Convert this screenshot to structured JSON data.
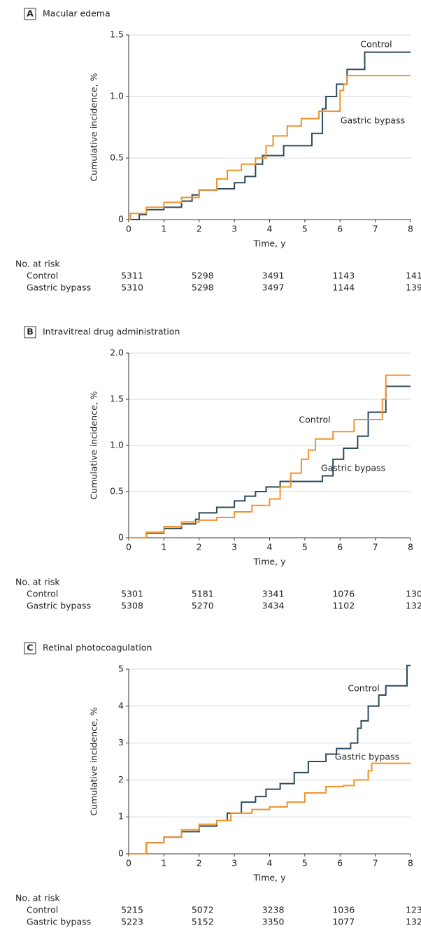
{
  "chart_data": [
    {
      "type": "line",
      "step": true,
      "panel": "A",
      "title": "Macular edema",
      "xlabel": "Time, y",
      "ylabel": "Cumulative incidence, %",
      "xlim": [
        0,
        8
      ],
      "xticks": [
        0,
        1,
        2,
        3,
        4,
        5,
        6,
        7,
        8
      ],
      "ylim": [
        0,
        1.5
      ],
      "yticks": [
        0,
        0.5,
        {
          "value": 1,
          "label": "1.0"
        },
        1.5
      ],
      "grid": true,
      "series": [
        {
          "name": "Control",
          "color": "#2c4a5c",
          "x": [
            0,
            0.3,
            0.5,
            1,
            1.5,
            1.8,
            2.0,
            2.5,
            3,
            3.3,
            3.6,
            3.8,
            4.4,
            5.2,
            5.5,
            5.6,
            5.9,
            6.2,
            6.7,
            8
          ],
          "values": [
            0,
            0.04,
            0.08,
            0.1,
            0.15,
            0.2,
            0.24,
            0.25,
            0.3,
            0.35,
            0.45,
            0.52,
            0.6,
            0.7,
            0.9,
            1.0,
            1.1,
            1.22,
            1.36,
            1.36
          ]
        },
        {
          "name": "Gastric bypass",
          "color": "#f0932b",
          "x": [
            0,
            0.05,
            0.5,
            1,
            1.5,
            2,
            2.5,
            2.8,
            3.2,
            3.6,
            3.9,
            4.1,
            4.5,
            4.9,
            5.4,
            6.0,
            6.1,
            6.2,
            8
          ],
          "values": [
            0,
            0.05,
            0.1,
            0.14,
            0.18,
            0.24,
            0.33,
            0.4,
            0.45,
            0.5,
            0.6,
            0.68,
            0.76,
            0.82,
            0.88,
            1.05,
            1.1,
            1.17,
            1.17
          ]
        }
      ],
      "risk_table": {
        "title": "No. at risk",
        "rows": [
          {
            "name": "Control",
            "values": [
              5311,
              5298,
              3491,
              1143,
              141
            ]
          },
          {
            "name": "Gastric bypass",
            "values": [
              5310,
              5298,
              3497,
              1144,
              139
            ]
          }
        ]
      }
    },
    {
      "type": "line",
      "step": true,
      "panel": "B",
      "title": "Intravitreal drug administration",
      "xlabel": "Time, y",
      "ylabel": "Cumulative incidence, %",
      "xlim": [
        0,
        8
      ],
      "xticks": [
        0,
        1,
        2,
        3,
        4,
        5,
        6,
        7,
        8
      ],
      "ylim": [
        0,
        2
      ],
      "yticks": [
        0,
        0.5,
        {
          "value": 1,
          "label": "1.0"
        },
        1.5,
        {
          "value": 2,
          "label": "2.0"
        }
      ],
      "grid": true,
      "series": [
        {
          "name": "Control",
          "color": "#2c4a5c",
          "x": [
            0,
            0.5,
            1,
            1.5,
            1.9,
            2,
            2.5,
            3,
            3.3,
            3.6,
            3.9,
            4.3,
            5.5,
            5.8,
            6.1,
            6.5,
            6.8,
            7.3,
            8
          ],
          "values": [
            0,
            0.05,
            0.1,
            0.15,
            0.2,
            0.27,
            0.33,
            0.4,
            0.45,
            0.5,
            0.55,
            0.61,
            0.67,
            0.85,
            0.97,
            1.1,
            1.36,
            1.64,
            1.64
          ]
        },
        {
          "name": "Gastric bypass",
          "color": "#f0932b",
          "x": [
            0,
            0.5,
            1,
            1.5,
            2,
            2.5,
            3,
            3.5,
            4,
            4.3,
            4.6,
            4.9,
            5.1,
            5.3,
            5.8,
            6.4,
            7.2,
            7.3,
            8
          ],
          "values": [
            0,
            0.06,
            0.12,
            0.17,
            0.19,
            0.22,
            0.28,
            0.35,
            0.42,
            0.55,
            0.7,
            0.85,
            0.95,
            1.07,
            1.15,
            1.28,
            1.5,
            1.76,
            1.76
          ]
        }
      ],
      "risk_table": {
        "title": "No. at risk",
        "rows": [
          {
            "name": "Control",
            "values": [
              5301,
              5181,
              3341,
              1076,
              130
            ]
          },
          {
            "name": "Gastric bypass",
            "values": [
              5308,
              5270,
              3434,
              1102,
              132
            ]
          }
        ]
      }
    },
    {
      "type": "line",
      "step": true,
      "panel": "C",
      "title": "Retinal photocoagulation",
      "xlabel": "Time, y",
      "ylabel": "Cumulative incidence, %",
      "xlim": [
        0,
        8
      ],
      "xticks": [
        0,
        1,
        2,
        3,
        4,
        5,
        6,
        7,
        8
      ],
      "ylim": [
        0,
        5
      ],
      "yticks": [
        0,
        1,
        2,
        3,
        4,
        5
      ],
      "grid": true,
      "series": [
        {
          "name": "Control",
          "color": "#2c4a5c",
          "x": [
            0,
            0.5,
            1,
            1.5,
            2,
            2.5,
            2.8,
            3.2,
            3.6,
            3.9,
            4.3,
            4.7,
            5.1,
            5.6,
            5.9,
            6.3,
            6.5,
            6.6,
            6.8,
            7.1,
            7.3,
            7.9,
            8
          ],
          "values": [
            0,
            0.3,
            0.45,
            0.6,
            0.75,
            0.9,
            1.1,
            1.4,
            1.55,
            1.75,
            1.9,
            2.2,
            2.5,
            2.7,
            2.85,
            3.0,
            3.4,
            3.6,
            4.0,
            4.3,
            4.55,
            5.1,
            5.1
          ]
        },
        {
          "name": "Gastric bypass",
          "color": "#f0932b",
          "x": [
            0,
            0.5,
            1,
            1.5,
            2,
            2.5,
            2.9,
            3.5,
            4,
            4.5,
            5,
            5.6,
            6.1,
            6.4,
            6.8,
            6.9,
            8
          ],
          "values": [
            0,
            0.3,
            0.45,
            0.65,
            0.8,
            0.9,
            1.1,
            1.2,
            1.27,
            1.4,
            1.65,
            1.82,
            1.85,
            2.0,
            2.25,
            2.45,
            2.45
          ]
        }
      ],
      "risk_table": {
        "title": "No. at risk",
        "rows": [
          {
            "name": "Control",
            "values": [
              5215,
              5072,
              3238,
              1036,
              123
            ]
          },
          {
            "name": "Gastric bypass",
            "values": [
              5223,
              5152,
              3350,
              1077,
              132
            ]
          }
        ]
      }
    }
  ]
}
